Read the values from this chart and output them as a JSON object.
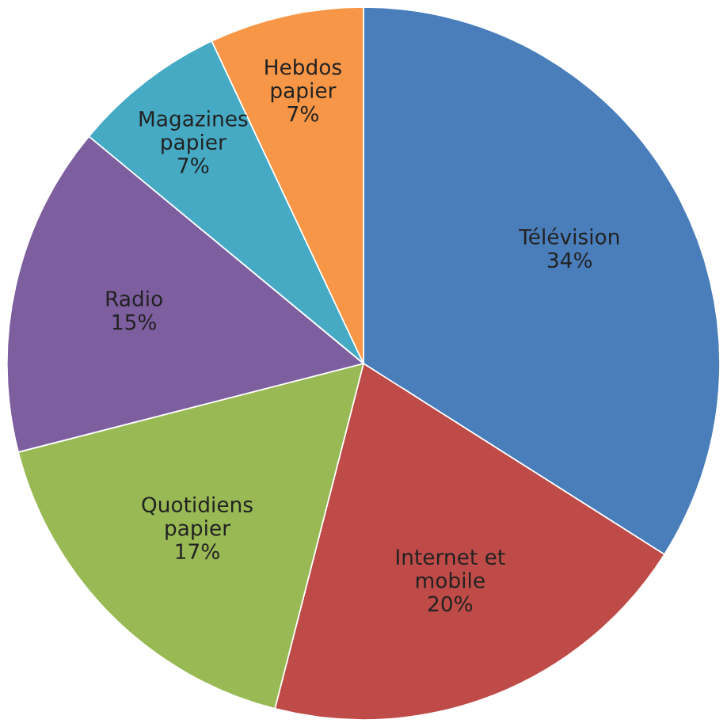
{
  "chart_data": {
    "type": "pie",
    "categories": [
      "Télévision",
      "Internet et\nmobile",
      "Quotidiens\npapier",
      "Radio",
      "Magazines\npapier",
      "Hebdos\npapier"
    ],
    "values": [
      34,
      20,
      17,
      15,
      7,
      7
    ],
    "value_labels": [
      "34%",
      "20%",
      "17%",
      "15%",
      "7%",
      "7%"
    ],
    "colors": [
      "#4a7ebb",
      "#be4b48",
      "#98b954",
      "#7d5fa0",
      "#46aac5",
      "#f79646"
    ],
    "legend": false
  }
}
